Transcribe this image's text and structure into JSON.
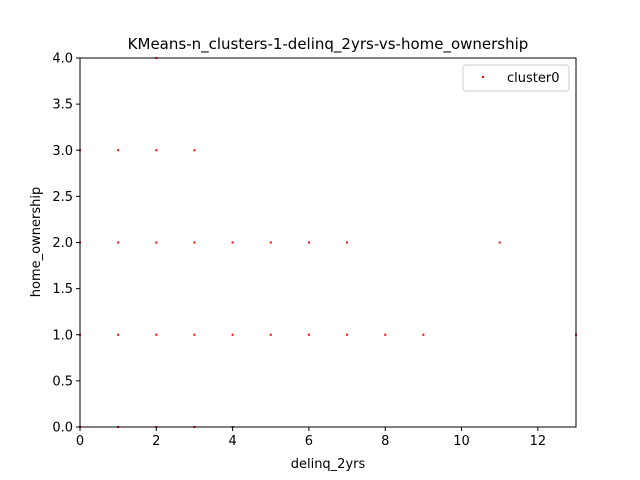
{
  "chart_data": {
    "type": "scatter",
    "title": "KMeans-n_clusters-1-delinq_2yrs-vs-home_ownership",
    "xlabel": "delinq_2yrs",
    "ylabel": "home_ownership",
    "xlim": [
      0,
      13
    ],
    "ylim": [
      0,
      4
    ],
    "xticks": [
      "0",
      "2",
      "4",
      "6",
      "8",
      "10",
      "12"
    ],
    "xtick_values": [
      0,
      2,
      4,
      6,
      8,
      10,
      12
    ],
    "yticks": [
      "0.0",
      "0.5",
      "1.0",
      "1.5",
      "2.0",
      "2.5",
      "3.0",
      "3.5",
      "4.0"
    ],
    "ytick_values": [
      0,
      0.5,
      1,
      1.5,
      2,
      2.5,
      3,
      3.5,
      4
    ],
    "grid": false,
    "legend_position": "top-right",
    "series": [
      {
        "name": "cluster0",
        "color": "#ff0000",
        "points": [
          [
            0,
            0
          ],
          [
            1,
            0
          ],
          [
            2,
            0
          ],
          [
            3,
            0
          ],
          [
            4,
            0
          ],
          [
            0,
            1
          ],
          [
            1,
            1
          ],
          [
            2,
            1
          ],
          [
            3,
            1
          ],
          [
            4,
            1
          ],
          [
            5,
            1
          ],
          [
            6,
            1
          ],
          [
            7,
            1
          ],
          [
            8,
            1
          ],
          [
            9,
            1
          ],
          [
            13,
            1
          ],
          [
            0,
            2
          ],
          [
            1,
            2
          ],
          [
            2,
            2
          ],
          [
            3,
            2
          ],
          [
            4,
            2
          ],
          [
            5,
            2
          ],
          [
            6,
            2
          ],
          [
            7,
            2
          ],
          [
            11,
            2
          ],
          [
            0,
            3
          ],
          [
            1,
            3
          ],
          [
            2,
            3
          ],
          [
            3,
            3
          ],
          [
            2,
            4
          ]
        ]
      }
    ]
  }
}
